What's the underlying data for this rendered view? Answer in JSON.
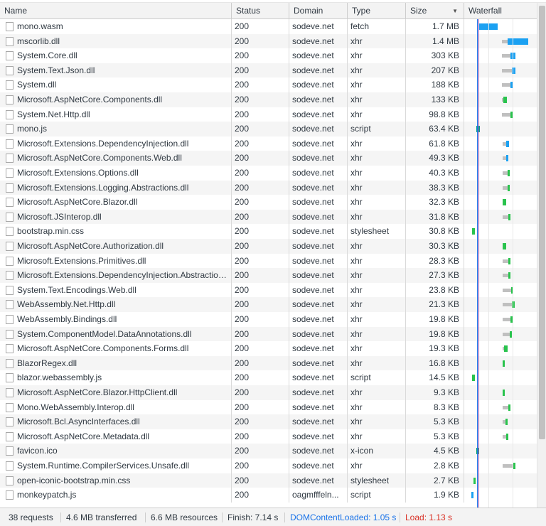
{
  "columns": {
    "name": "Name",
    "status": "Status",
    "domain": "Domain",
    "type": "Type",
    "size": "Size",
    "waterfall": "Waterfall",
    "sort_icon": "▼"
  },
  "colors": {
    "fetch_bar": "#1ba1f2",
    "xhr_bar": "#1ba1f2",
    "script_bar": "#00a08a",
    "stylesheet_bar": "#29c34d",
    "other_bar": "#009e69",
    "wait_bar": "#c0c0c0",
    "dom_content_loaded": "#1a73e8",
    "load": "#d93025",
    "load_line": "#9b59b6"
  },
  "requests": [
    {
      "name": "mono.wasm",
      "status": "200",
      "domain": "sodeve.net",
      "type": "fetch",
      "size": "1.7 MB",
      "icon": "file-icon",
      "start": 0.2,
      "wait": 0.0,
      "dur": 0.26,
      "color": "#1ba1f2"
    },
    {
      "name": "mscorlib.dll",
      "status": "200",
      "domain": "sodeve.net",
      "type": "xhr",
      "size": "1.4 MB",
      "icon": "file-icon",
      "start": 0.52,
      "wait": 0.08,
      "dur": 0.28,
      "color": "#1ba1f2"
    },
    {
      "name": "System.Core.dll",
      "status": "200",
      "domain": "sodeve.net",
      "type": "xhr",
      "size": "303 KB",
      "icon": "file-icon",
      "start": 0.52,
      "wait": 0.12,
      "dur": 0.07,
      "color": "#1ba1f2"
    },
    {
      "name": "System.Text.Json.dll",
      "status": "200",
      "domain": "sodeve.net",
      "type": "xhr",
      "size": "207 KB",
      "icon": "file-icon",
      "start": 0.52,
      "wait": 0.14,
      "dur": 0.05,
      "color": "#1ba1f2"
    },
    {
      "name": "System.dll",
      "status": "200",
      "domain": "sodeve.net",
      "type": "xhr",
      "size": "188 KB",
      "icon": "file-icon",
      "start": 0.52,
      "wait": 0.12,
      "dur": 0.04,
      "color": "#1ba1f2"
    },
    {
      "name": "Microsoft.AspNetCore.Components.dll",
      "status": "200",
      "domain": "sodeve.net",
      "type": "xhr",
      "size": "133 KB",
      "icon": "file-icon",
      "start": 0.52,
      "wait": 0.02,
      "dur": 0.05,
      "color": "#29c34d"
    },
    {
      "name": "System.Net.Http.dll",
      "status": "200",
      "domain": "sodeve.net",
      "type": "xhr",
      "size": "98.8 KB",
      "icon": "file-icon",
      "start": 0.52,
      "wait": 0.12,
      "dur": 0.03,
      "color": "#29c34d"
    },
    {
      "name": "mono.js",
      "status": "200",
      "domain": "sodeve.net",
      "type": "script",
      "size": "63.4 KB",
      "icon": "doc-icon",
      "start": 0.17,
      "wait": 0.0,
      "dur": 0.05,
      "color": "#00a08a"
    },
    {
      "name": "Microsoft.Extensions.DependencyInjection.dll",
      "status": "200",
      "domain": "sodeve.net",
      "type": "xhr",
      "size": "61.8 KB",
      "icon": "file-icon",
      "start": 0.53,
      "wait": 0.05,
      "dur": 0.04,
      "color": "#1ba1f2"
    },
    {
      "name": "Microsoft.AspNetCore.Components.Web.dll",
      "status": "200",
      "domain": "sodeve.net",
      "type": "xhr",
      "size": "49.3 KB",
      "icon": "file-icon",
      "start": 0.53,
      "wait": 0.05,
      "dur": 0.03,
      "color": "#1ba1f2"
    },
    {
      "name": "Microsoft.Extensions.Options.dll",
      "status": "200",
      "domain": "sodeve.net",
      "type": "xhr",
      "size": "40.3 KB",
      "icon": "file-icon",
      "start": 0.53,
      "wait": 0.07,
      "dur": 0.03,
      "color": "#29c34d"
    },
    {
      "name": "Microsoft.Extensions.Logging.Abstractions.dll",
      "status": "200",
      "domain": "sodeve.net",
      "type": "xhr",
      "size": "38.3 KB",
      "icon": "file-icon",
      "start": 0.53,
      "wait": 0.07,
      "dur": 0.02,
      "color": "#29c34d"
    },
    {
      "name": "Microsoft.AspNetCore.Blazor.dll",
      "status": "200",
      "domain": "sodeve.net",
      "type": "xhr",
      "size": "32.3 KB",
      "icon": "file-icon",
      "start": 0.53,
      "wait": 0.0,
      "dur": 0.05,
      "color": "#29c34d"
    },
    {
      "name": "Microsoft.JSInterop.dll",
      "status": "200",
      "domain": "sodeve.net",
      "type": "xhr",
      "size": "31.8 KB",
      "icon": "file-icon",
      "start": 0.53,
      "wait": 0.08,
      "dur": 0.02,
      "color": "#29c34d"
    },
    {
      "name": "bootstrap.min.css",
      "status": "200",
      "domain": "sodeve.net",
      "type": "stylesheet",
      "size": "30.8 KB",
      "icon": "doc-icon",
      "start": 0.11,
      "wait": 0.0,
      "dur": 0.04,
      "color": "#29c34d"
    },
    {
      "name": "Microsoft.AspNetCore.Authorization.dll",
      "status": "200",
      "domain": "sodeve.net",
      "type": "xhr",
      "size": "30.3 KB",
      "icon": "file-icon",
      "start": 0.53,
      "wait": 0.0,
      "dur": 0.05,
      "color": "#29c34d"
    },
    {
      "name": "Microsoft.Extensions.Primitives.dll",
      "status": "200",
      "domain": "sodeve.net",
      "type": "xhr",
      "size": "28.3 KB",
      "icon": "file-icon",
      "start": 0.53,
      "wait": 0.08,
      "dur": 0.03,
      "color": "#29c34d"
    },
    {
      "name": "Microsoft.Extensions.DependencyInjection.Abstractions.dll",
      "status": "200",
      "domain": "sodeve.net",
      "type": "xhr",
      "size": "27.3 KB",
      "icon": "file-icon",
      "start": 0.53,
      "wait": 0.08,
      "dur": 0.03,
      "color": "#29c34d"
    },
    {
      "name": "System.Text.Encodings.Web.dll",
      "status": "200",
      "domain": "sodeve.net",
      "type": "xhr",
      "size": "23.8 KB",
      "icon": "file-icon",
      "start": 0.53,
      "wait": 0.12,
      "dur": 0.03,
      "color": "#29c34d"
    },
    {
      "name": "WebAssembly.Net.Http.dll",
      "status": "200",
      "domain": "sodeve.net",
      "type": "xhr",
      "size": "21.3 KB",
      "icon": "file-icon",
      "start": 0.53,
      "wait": 0.13,
      "dur": 0.04,
      "color": "#29c34d"
    },
    {
      "name": "WebAssembly.Bindings.dll",
      "status": "200",
      "domain": "sodeve.net",
      "type": "xhr",
      "size": "19.8 KB",
      "icon": "file-icon",
      "start": 0.53,
      "wait": 0.11,
      "dur": 0.03,
      "color": "#29c34d"
    },
    {
      "name": "System.ComponentModel.DataAnnotations.dll",
      "status": "200",
      "domain": "sodeve.net",
      "type": "xhr",
      "size": "19.8 KB",
      "icon": "file-icon",
      "start": 0.53,
      "wait": 0.1,
      "dur": 0.03,
      "color": "#29c34d"
    },
    {
      "name": "Microsoft.AspNetCore.Components.Forms.dll",
      "status": "200",
      "domain": "sodeve.net",
      "type": "xhr",
      "size": "19.3 KB",
      "icon": "file-icon",
      "start": 0.53,
      "wait": 0.02,
      "dur": 0.05,
      "color": "#29c34d"
    },
    {
      "name": "BlazorRegex.dll",
      "status": "200",
      "domain": "sodeve.net",
      "type": "xhr",
      "size": "16.8 KB",
      "icon": "file-icon",
      "start": 0.53,
      "wait": 0.0,
      "dur": 0.02,
      "color": "#29c34d"
    },
    {
      "name": "blazor.webassembly.js",
      "status": "200",
      "domain": "sodeve.net",
      "type": "script",
      "size": "14.5 KB",
      "icon": "doc-icon",
      "start": 0.11,
      "wait": 0.0,
      "dur": 0.04,
      "color": "#29c34d"
    },
    {
      "name": "Microsoft.AspNetCore.Blazor.HttpClient.dll",
      "status": "200",
      "domain": "sodeve.net",
      "type": "xhr",
      "size": "9.3 KB",
      "icon": "file-icon",
      "start": 0.53,
      "wait": 0.0,
      "dur": 0.02,
      "color": "#29c34d"
    },
    {
      "name": "Mono.WebAssembly.Interop.dll",
      "status": "200",
      "domain": "sodeve.net",
      "type": "xhr",
      "size": "8.3 KB",
      "icon": "file-icon",
      "start": 0.53,
      "wait": 0.08,
      "dur": 0.02,
      "color": "#29c34d"
    },
    {
      "name": "Microsoft.Bcl.AsyncInterfaces.dll",
      "status": "200",
      "domain": "sodeve.net",
      "type": "xhr",
      "size": "5.3 KB",
      "icon": "file-icon",
      "start": 0.53,
      "wait": 0.04,
      "dur": 0.02,
      "color": "#29c34d"
    },
    {
      "name": "Microsoft.AspNetCore.Metadata.dll",
      "status": "200",
      "domain": "sodeve.net",
      "type": "xhr",
      "size": "5.3 KB",
      "icon": "file-icon",
      "start": 0.53,
      "wait": 0.05,
      "dur": 0.02,
      "color": "#29c34d"
    },
    {
      "name": "favicon.ico",
      "status": "200",
      "domain": "sodeve.net",
      "type": "x-icon",
      "size": "4.5 KB",
      "icon": "file-icon",
      "start": 0.17,
      "wait": 0.0,
      "dur": 0.02,
      "color": "#009e69"
    },
    {
      "name": "System.Runtime.CompilerServices.Unsafe.dll",
      "status": "200",
      "domain": "sodeve.net",
      "type": "xhr",
      "size": "2.8 KB",
      "icon": "file-icon",
      "start": 0.53,
      "wait": 0.14,
      "dur": 0.04,
      "color": "#29c34d"
    },
    {
      "name": "open-iconic-bootstrap.min.css",
      "status": "200",
      "domain": "sodeve.net",
      "type": "stylesheet",
      "size": "2.7 KB",
      "icon": "doc-icon",
      "start": 0.13,
      "wait": 0.0,
      "dur": 0.03,
      "color": "#29c34d"
    },
    {
      "name": "monkeypatch.js",
      "status": "200",
      "domain": "oagmfffeln...",
      "type": "script",
      "size": "1.9 KB",
      "icon": "doc-icon",
      "start": 0.1,
      "wait": 0.0,
      "dur": 0.02,
      "color": "#1ba1f2"
    }
  ],
  "status_bar": {
    "requests": "38 requests",
    "transferred": "4.6 MB transferred",
    "resources": "6.6 MB resources",
    "finish": "Finish: 7.14 s",
    "dom_content_loaded": "DOMContentLoaded: 1.05 s",
    "load": "Load: 1.13 s"
  }
}
